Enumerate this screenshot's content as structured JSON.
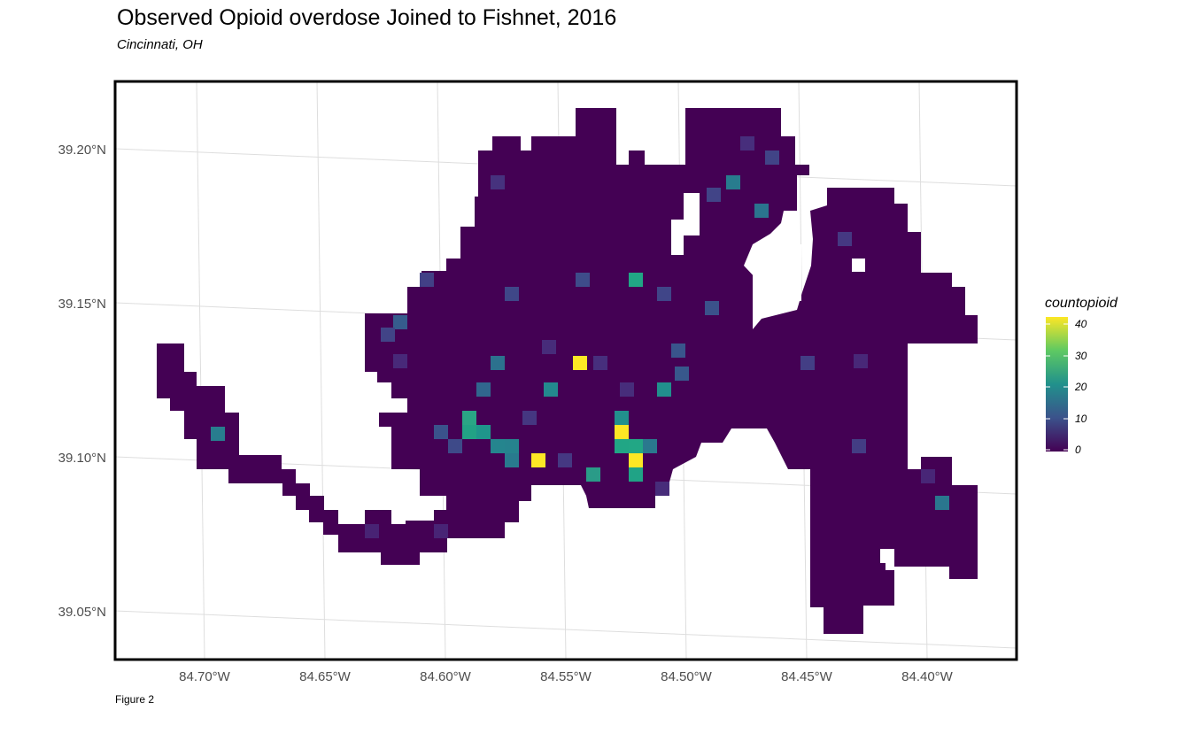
{
  "title": "Observed Opioid overdose Joined to Fishnet, 2016",
  "subtitle": "Cincinnati, OH",
  "caption": "Figure 2",
  "y_axis_labels": [
    "39.20°N",
    "39.15°N",
    "39.10°N",
    "39.05°N"
  ],
  "x_axis_labels": [
    "84.70°W",
    "84.65°W",
    "84.60°W",
    "84.55°W",
    "84.50°W",
    "84.45°W",
    "84.40°W"
  ],
  "legend": {
    "title": "countopioid",
    "ticks": [
      "40",
      "30",
      "20",
      "10",
      "0"
    ],
    "colors": [
      "#fde725",
      "#5ec962",
      "#21918c",
      "#3b528b",
      "#440154"
    ]
  },
  "colors": {
    "fill_low": "#440154",
    "panel_border": "#000000",
    "grid": "#d9d9d9"
  }
}
